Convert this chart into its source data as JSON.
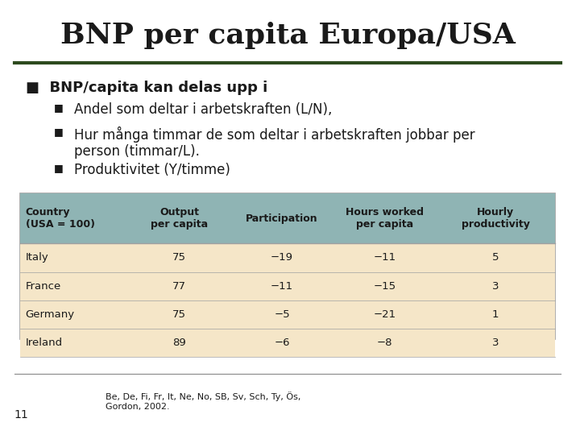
{
  "title": "BNP per capita Europa/USA",
  "bullet_main": "BNP/capita kan delas upp i",
  "bullets": [
    "Andel som deltar i arbetskraften (L/N),",
    "Hur många timmar de som deltar i arbetskraften jobbar per\nperson (timmar/L).",
    "Produktivitet (Y/timme)"
  ],
  "table_headers": [
    "Country\n(USA = 100)",
    "Output\nper capita",
    "Participation",
    "Hours worked\nper capita",
    "Hourly\nproductivity"
  ],
  "table_data": [
    [
      "Italy",
      "75",
      "−19",
      "−11",
      "5"
    ],
    [
      "France",
      "77",
      "−11",
      "−15",
      "3"
    ],
    [
      "Germany",
      "75",
      "−5",
      "−21",
      "1"
    ],
    [
      "Ireland",
      "89",
      "−6",
      "−8",
      "3"
    ]
  ],
  "header_bg": "#8fb4b4",
  "row_bg": "#f5e6c8",
  "table_border": "#a0a0a0",
  "title_color": "#1a1a1a",
  "dark_green_line": "#2d4a1e",
  "bullet_color": "#2d4a1e",
  "text_color": "#1a1a1a",
  "footnote": "Be, De, Fi, Fr, It, Ne, No, SB, Sv, Sch, Ty, Ös,\nGordon, 2002.",
  "slide_number": "11",
  "bg_color": "#ffffff"
}
